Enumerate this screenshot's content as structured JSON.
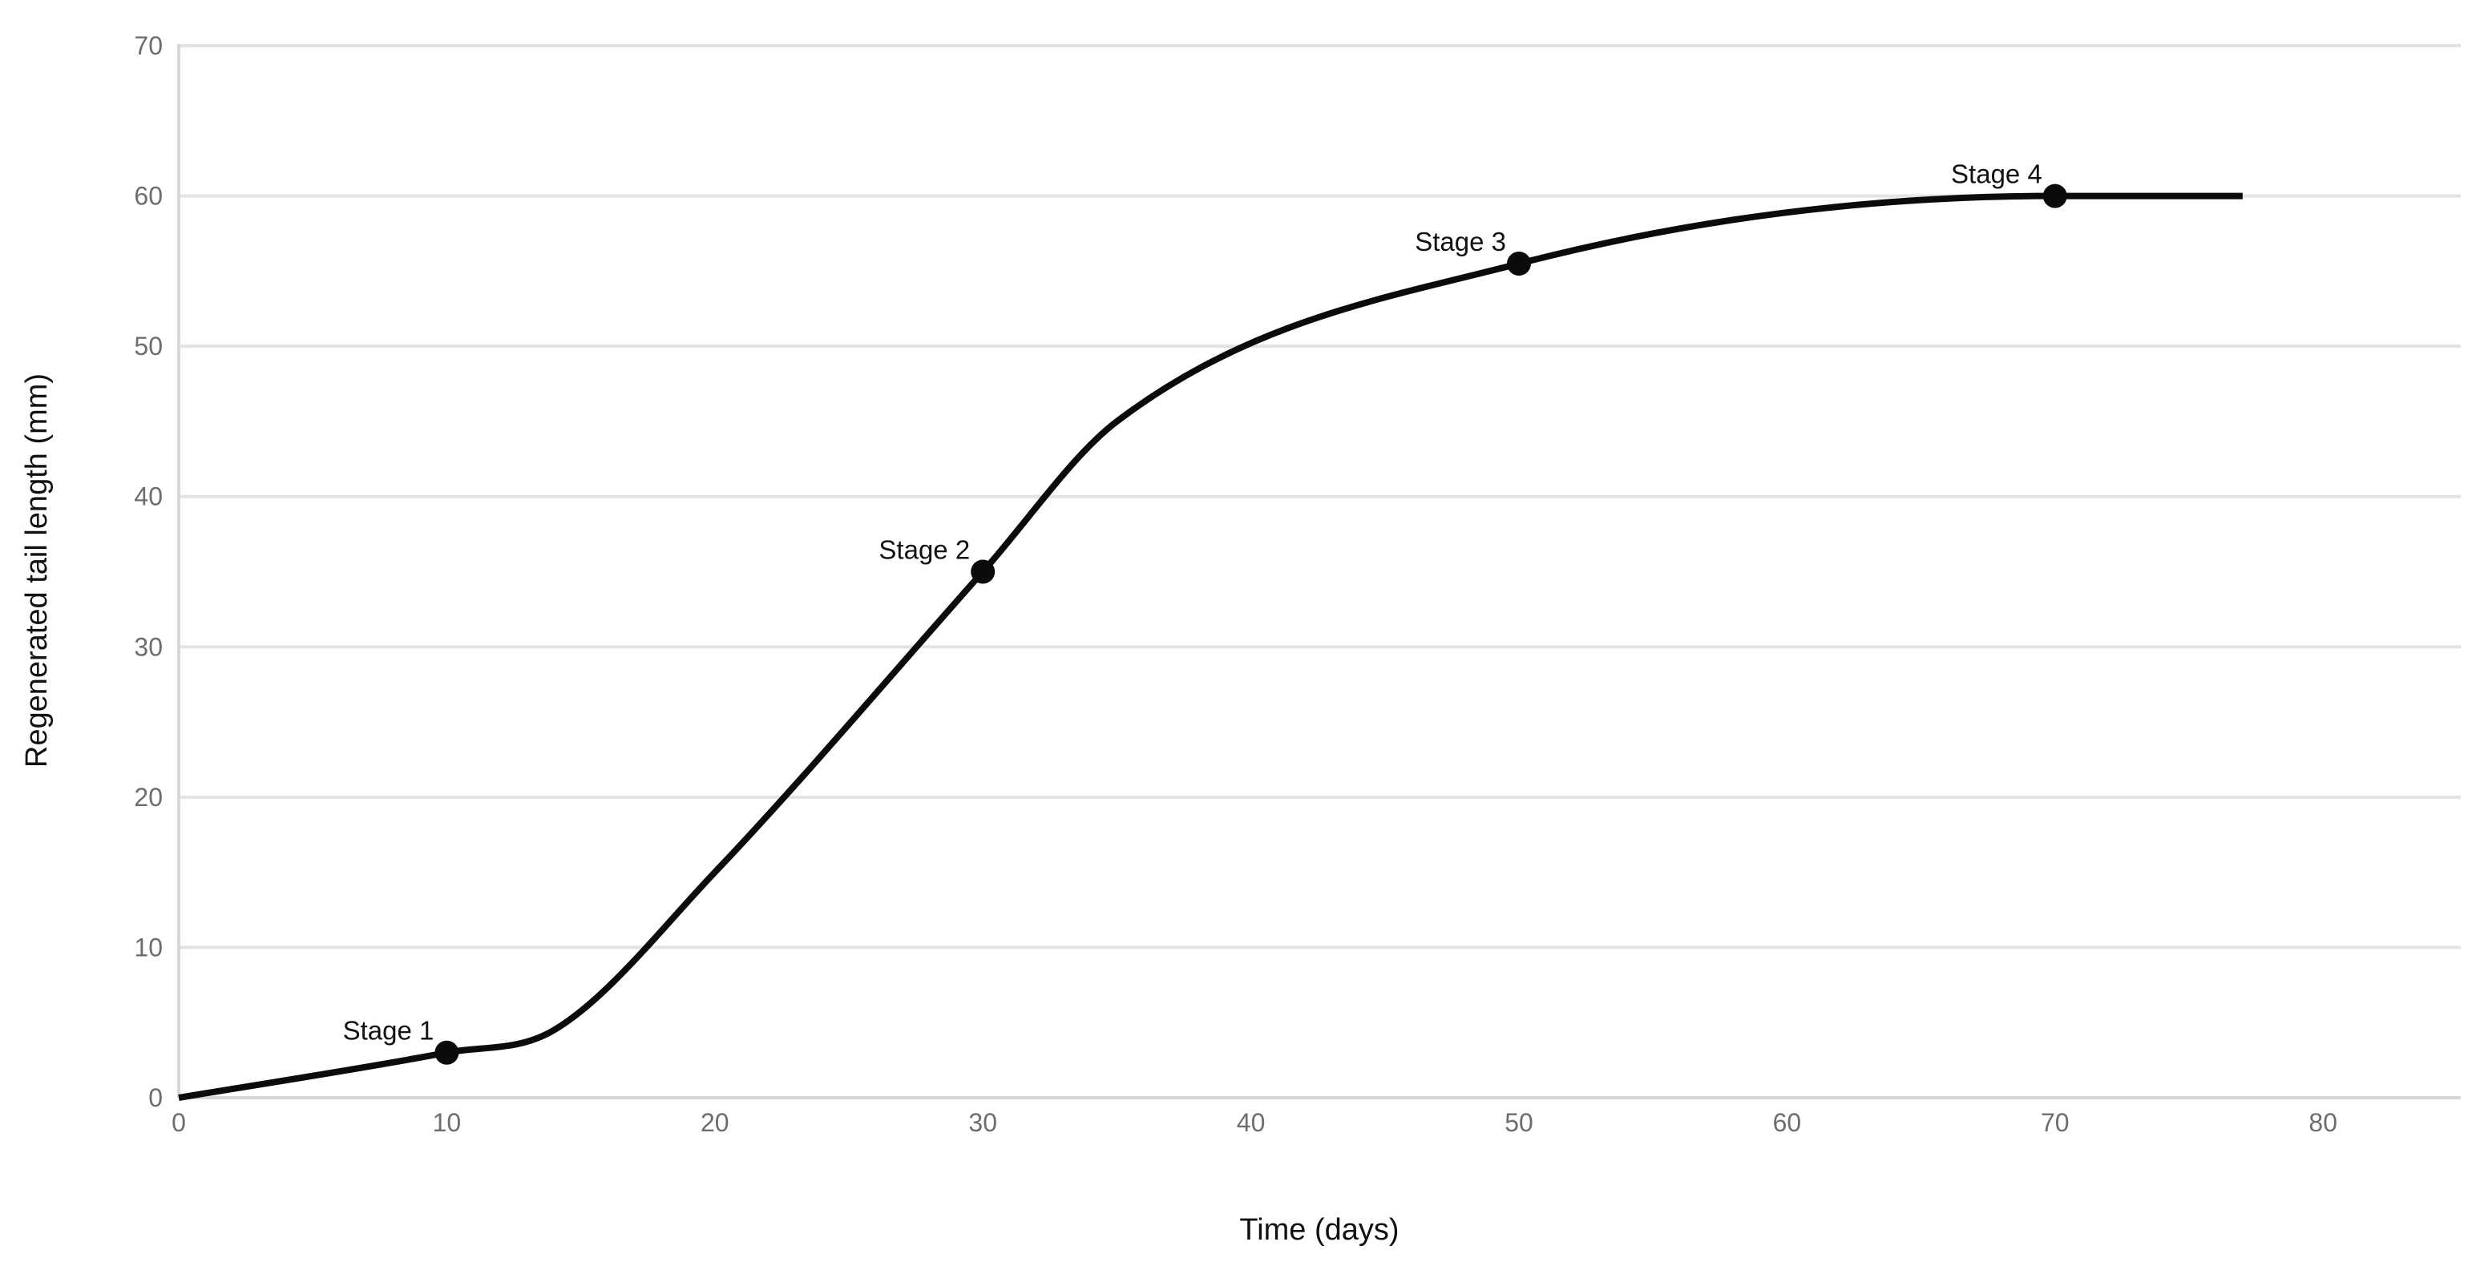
{
  "chart_data": {
    "type": "line",
    "title": "",
    "xlabel": "Time (days)",
    "ylabel": "Regenerated tail length (mm)",
    "xlim": [
      0,
      85
    ],
    "ylim": [
      0,
      70
    ],
    "x_ticks": [
      0,
      10,
      20,
      30,
      40,
      50,
      60,
      70,
      80
    ],
    "y_ticks": [
      0,
      10,
      20,
      30,
      40,
      50,
      60,
      70
    ],
    "grid": "horizontal",
    "legend_position": "none",
    "series": [
      {
        "name": "Regenerated tail length",
        "smooth": true,
        "points": [
          {
            "x": 0,
            "y": 0
          },
          {
            "x": 10,
            "y": 3
          },
          {
            "x": 14,
            "y": 4.5
          },
          {
            "x": 20,
            "y": 15
          },
          {
            "x": 30,
            "y": 35
          },
          {
            "x": 35,
            "y": 45
          },
          {
            "x": 50,
            "y": 55.5
          },
          {
            "x": 70,
            "y": 60
          },
          {
            "x": 77,
            "y": 60
          }
        ]
      }
    ],
    "annotations": [
      {
        "label": "Stage 1",
        "x": 10,
        "y": 3
      },
      {
        "label": "Stage 2",
        "x": 30,
        "y": 35
      },
      {
        "label": "Stage 3",
        "x": 50,
        "y": 55.5
      },
      {
        "label": "Stage 4",
        "x": 70,
        "y": 60
      }
    ]
  },
  "style": {
    "background_color": "#ffffff",
    "line_color": "#0b0b0b",
    "marker_color": "#0b0b0b",
    "grid_color": "#e3e3e3",
    "axis_line_color": "#d6d6d6",
    "tick_label_color": "#6d6d6d",
    "axis_title_color": "#111111",
    "annotation_color": "#111111"
  }
}
